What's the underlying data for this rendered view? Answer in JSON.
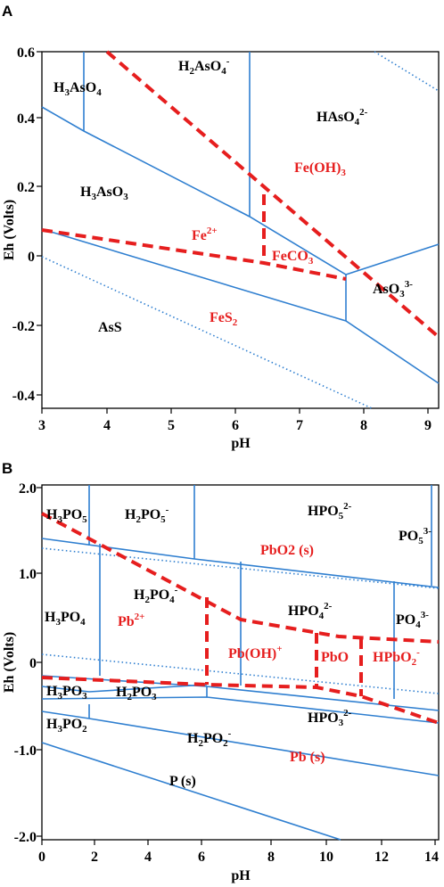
{
  "panels": [
    {
      "id": "A",
      "label": "A",
      "xlabel": "pH",
      "ylabel": "Eh (Volts)",
      "x_ticks": [
        "3",
        "4",
        "5",
        "6",
        "7",
        "8",
        "9"
      ],
      "y_ticks": [
        "0.6",
        "0.4",
        "0.2",
        "0",
        "-0.2",
        "-0.4"
      ],
      "species": [
        {
          "sub": [
            {
              "t": "H"
            },
            {
              "t": "3",
              "b": 1
            },
            {
              "t": "AsO"
            },
            {
              "t": "4",
              "b": 1
            }
          ],
          "color": "black"
        },
        {
          "sub": [
            {
              "t": "H"
            },
            {
              "t": "2",
              "b": 1
            },
            {
              "t": "AsO"
            },
            {
              "t": "4",
              "b": 1
            },
            {
              "t": "-",
              "p": 1
            }
          ],
          "color": "black"
        },
        {
          "sub": [
            {
              "t": "HAsO"
            },
            {
              "t": "4",
              "b": 1
            },
            {
              "t": "2-",
              "p": 1
            }
          ],
          "color": "black"
        },
        {
          "sub": [
            {
              "t": "H"
            },
            {
              "t": "3",
              "b": 1
            },
            {
              "t": "AsO"
            },
            {
              "t": "3",
              "b": 1
            }
          ],
          "color": "black"
        },
        {
          "sub": [
            {
              "t": "Fe(OH)"
            },
            {
              "t": "3",
              "b": 1
            }
          ],
          "color": "red"
        },
        {
          "sub": [
            {
              "t": "Fe"
            },
            {
              "t": "2+",
              "p": 1
            }
          ],
          "color": "red"
        },
        {
          "sub": [
            {
              "t": "FeCO"
            },
            {
              "t": "3",
              "b": 1
            }
          ],
          "color": "red"
        },
        {
          "sub": [
            {
              "t": "AsO"
            },
            {
              "t": "3",
              "b": 1
            },
            {
              "t": "3-",
              "p": 1
            }
          ],
          "color": "black"
        },
        {
          "sub": [
            {
              "t": "FeS"
            },
            {
              "t": "2",
              "b": 1
            }
          ],
          "color": "red"
        },
        {
          "sub": [
            {
              "t": "AsS"
            }
          ],
          "color": "black"
        }
      ]
    },
    {
      "id": "B",
      "label": "B",
      "xlabel": "pH",
      "ylabel": "Eh (Volts)",
      "x_ticks": [
        "0",
        "2",
        "4",
        "6",
        "8",
        "10",
        "12",
        "14"
      ],
      "y_ticks": [
        "2.0",
        "1.0",
        "0",
        "-1.0",
        "-2.0"
      ],
      "species": [
        {
          "sub": [
            {
              "t": "H"
            },
            {
              "t": "3",
              "b": 1
            },
            {
              "t": "PO"
            },
            {
              "t": "5",
              "b": 1
            }
          ],
          "color": "black"
        },
        {
          "sub": [
            {
              "t": "H"
            },
            {
              "t": "2",
              "b": 1
            },
            {
              "t": "PO"
            },
            {
              "t": "5",
              "b": 1
            },
            {
              "t": "-",
              "p": 1
            }
          ],
          "color": "black"
        },
        {
          "sub": [
            {
              "t": "HPO"
            },
            {
              "t": "5",
              "b": 1
            },
            {
              "t": "2-",
              "p": 1
            }
          ],
          "color": "black"
        },
        {
          "sub": [
            {
              "t": "PO"
            },
            {
              "t": "5",
              "b": 1
            },
            {
              "t": "3-",
              "p": 1
            }
          ],
          "color": "black"
        },
        {
          "sub": [
            {
              "t": "PbO2 (s)"
            }
          ],
          "color": "red"
        },
        {
          "sub": [
            {
              "t": "H"
            },
            {
              "t": "2",
              "b": 1
            },
            {
              "t": "PO"
            },
            {
              "t": "4",
              "b": 1
            },
            {
              "t": "-",
              "p": 1
            }
          ],
          "color": "black"
        },
        {
          "sub": [
            {
              "t": "HPO"
            },
            {
              "t": "4",
              "b": 1
            },
            {
              "t": "2-",
              "p": 1
            }
          ],
          "color": "black"
        },
        {
          "sub": [
            {
              "t": "H"
            },
            {
              "t": "3",
              "b": 1
            },
            {
              "t": "PO"
            },
            {
              "t": "4",
              "b": 1
            }
          ],
          "color": "black"
        },
        {
          "sub": [
            {
              "t": "Pb"
            },
            {
              "t": "2+",
              "p": 1
            }
          ],
          "color": "red"
        },
        {
          "sub": [
            {
              "t": "PO"
            },
            {
              "t": "4",
              "b": 1
            },
            {
              "t": "3-",
              "p": 1
            }
          ],
          "color": "black"
        },
        {
          "sub": [
            {
              "t": "Pb(OH)"
            },
            {
              "t": "+",
              "p": 1
            }
          ],
          "color": "red"
        },
        {
          "sub": [
            {
              "t": "PbO"
            }
          ],
          "color": "red"
        },
        {
          "sub": [
            {
              "t": "HPbO"
            },
            {
              "t": "2",
              "b": 1
            },
            {
              "t": "-",
              "p": 1
            }
          ],
          "color": "red"
        },
        {
          "sub": [
            {
              "t": "H"
            },
            {
              "t": "3",
              "b": 1
            },
            {
              "t": "PO"
            },
            {
              "t": "3",
              "b": 1
            }
          ],
          "color": "black"
        },
        {
          "sub": [
            {
              "t": "H"
            },
            {
              "t": "2",
              "b": 1
            },
            {
              "t": "PO"
            },
            {
              "t": "3",
              "b": 1
            }
          ],
          "color": "black"
        },
        {
          "sub": [
            {
              "t": "H"
            },
            {
              "t": "3",
              "b": 1
            },
            {
              "t": "PO"
            },
            {
              "t": "2",
              "b": 1
            }
          ],
          "color": "black"
        },
        {
          "sub": [
            {
              "t": "HPO"
            },
            {
              "t": "3",
              "b": 1
            },
            {
              "t": "2-",
              "p": 1
            }
          ],
          "color": "black"
        },
        {
          "sub": [
            {
              "t": "H"
            },
            {
              "t": "2",
              "b": 1
            },
            {
              "t": "PO"
            },
            {
              "t": "2",
              "b": 1
            },
            {
              "t": "-",
              "p": 1
            }
          ],
          "color": "black"
        },
        {
          "sub": [
            {
              "t": "Pb (s)"
            }
          ],
          "color": "red"
        },
        {
          "sub": [
            {
              "t": "P (s)"
            }
          ],
          "color": "black"
        }
      ]
    }
  ],
  "colors": {
    "boundary_line": "#2f7fd0",
    "fe_pb_boundary": "#e61e1e",
    "red_label": "#e61e1e",
    "black_label": "#000000"
  }
}
